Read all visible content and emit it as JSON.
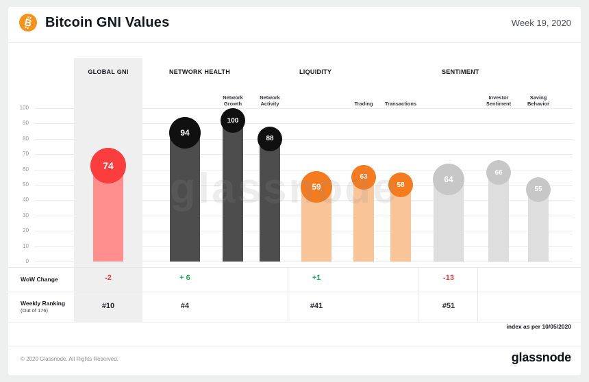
{
  "header": {
    "title": "Bitcoin GNI Values",
    "week_label": "Week 19, 2020"
  },
  "watermark": "glassnode",
  "chart_data": {
    "type": "bar",
    "title": "Bitcoin GNI Values",
    "subtitle": "Week 19, 2020",
    "ylim": [
      0,
      100
    ],
    "yticks": [
      100,
      90,
      80,
      70,
      60,
      50,
      40,
      30,
      20,
      10,
      0
    ],
    "grid": true,
    "legend_position": "none",
    "groups": [
      {
        "name": "GLOBAL GNI",
        "wow_change": "-2",
        "wow_sign": "negative",
        "weekly_ranking": "#10",
        "bar_color": "#ff8e8e",
        "bubble_color": "#fb3d3d",
        "bars": [
          {
            "label": "",
            "value": 74,
            "role": "hero"
          }
        ]
      },
      {
        "name": "NETWORK HEALTH",
        "wow_change": "+ 6",
        "wow_sign": "positive",
        "weekly_ranking": "#4",
        "bar_color": "#4d4d4d",
        "bubble_color": "#101010",
        "bars": [
          {
            "label": "",
            "value": 94,
            "role": "primary"
          },
          {
            "label": "Network Growth",
            "value": 100,
            "role": "secondary"
          },
          {
            "label": "Network Activity",
            "value": 88,
            "role": "secondary"
          }
        ]
      },
      {
        "name": "LIQUIDITY",
        "wow_change": "+1",
        "wow_sign": "positive",
        "weekly_ranking": "#41",
        "bar_color": "#f9c498",
        "bubble_color": "#f57b1f",
        "bars": [
          {
            "label": "",
            "value": 59,
            "role": "primary"
          },
          {
            "label": "Trading",
            "value": 63,
            "role": "secondary"
          },
          {
            "label": "Transactions",
            "value": 58,
            "role": "secondary"
          }
        ]
      },
      {
        "name": "SENTIMENT",
        "wow_change": "-13",
        "wow_sign": "negative",
        "weekly_ranking": "#51",
        "bar_color": "#dedede",
        "bubble_color": "#c7c7c7",
        "bars": [
          {
            "label": "",
            "value": 64,
            "role": "primary"
          },
          {
            "label": "Investor Sentiment",
            "value": 66,
            "role": "secondary"
          },
          {
            "label": "Saving Behavior",
            "value": 55,
            "role": "secondary"
          }
        ]
      }
    ]
  },
  "table": {
    "wow_label": "WoW  Change",
    "ranking_label": "Weekly Ranking",
    "ranking_sublabel": "(Out of 176)"
  },
  "index_note": "index as per 10/05/2020",
  "footer": {
    "copyright": "© 2020 Glassnode. All Rights Reserved.",
    "brand": "glassnode"
  },
  "colors": {
    "positive": "#18a850",
    "negative": "#f03b3b",
    "bitcoin_orange": "#f7931a"
  }
}
